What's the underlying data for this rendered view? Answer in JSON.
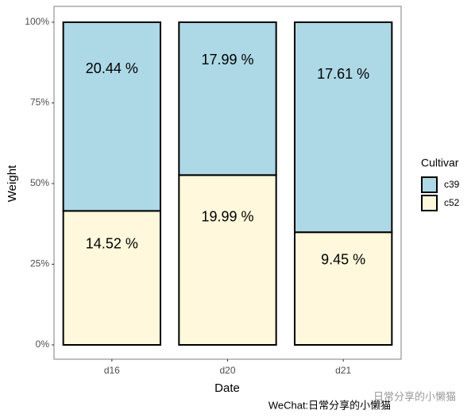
{
  "chart_data": {
    "type": "bar",
    "stacking": "fill",
    "x_label": "Date",
    "y_label": "Weight",
    "categories": [
      "d16",
      "d20",
      "d21"
    ],
    "series": [
      {
        "name": "c39",
        "color": "#add8e6",
        "values": [
          20.44,
          17.99,
          17.61
        ],
        "value_labels": [
          "20.44 %",
          "17.99 %",
          "17.61 %"
        ]
      },
      {
        "name": "c52",
        "color": "#fff8dc",
        "values": [
          14.52,
          19.99,
          9.45
        ],
        "value_labels": [
          "14.52 %",
          "19.99 %",
          "9.45 %"
        ]
      }
    ],
    "ylim": [
      0,
      100
    ],
    "yticks": [
      {
        "value": 0,
        "label": "0%"
      },
      {
        "value": 25,
        "label": "25%"
      },
      {
        "value": 50,
        "label": "50%"
      },
      {
        "value": 75,
        "label": "75%"
      },
      {
        "value": 100,
        "label": "100%"
      }
    ],
    "legend_title": "Cultivar",
    "legend_position": "right",
    "annotations": [
      "WeChat:日常分享的小懒猫",
      "日常分享的小懒猫"
    ]
  }
}
